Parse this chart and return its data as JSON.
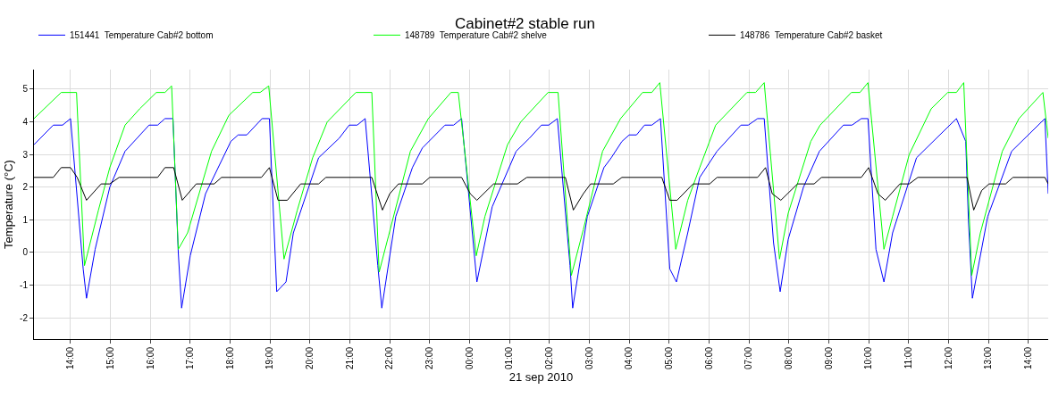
{
  "chart_data": {
    "type": "line",
    "title": "Cabinet#2 stable run",
    "xlabel": "21 sep 2010",
    "ylabel": "Temperature (°C)",
    "grid": true,
    "legend": "top left",
    "marker": "none",
    "line_style": "solid",
    "xlim": [
      "2010-09-20T13:05",
      "2010-09-21T14:30"
    ],
    "ylim": [
      -2.65,
      5.6
    ],
    "yticks": [
      -2,
      -1,
      0,
      1,
      2,
      3,
      4,
      5
    ],
    "xticks": [
      {
        "value": "2010-09-20T14:00",
        "label": "14:00"
      },
      {
        "value": "2010-09-20T15:00",
        "label": "15:00"
      },
      {
        "value": "2010-09-20T16:00",
        "label": "16:00"
      },
      {
        "value": "2010-09-20T17:00",
        "label": "17:00"
      },
      {
        "value": "2010-09-20T18:00",
        "label": "18:00"
      },
      {
        "value": "2010-09-20T19:00",
        "label": "19:00"
      },
      {
        "value": "2010-09-20T20:00",
        "label": "20:00"
      },
      {
        "value": "2010-09-20T21:00",
        "label": "21:00"
      },
      {
        "value": "2010-09-20T22:00",
        "label": "22:00"
      },
      {
        "value": "2010-09-20T23:00",
        "label": "23:00"
      },
      {
        "value": "2010-09-21T00:00",
        "label": "00:00"
      },
      {
        "value": "2010-09-21T01:00",
        "label": "01:00"
      },
      {
        "value": "2010-09-21T02:00",
        "label": "02:00"
      },
      {
        "value": "2010-09-21T03:00",
        "label": "03:00"
      },
      {
        "value": "2010-09-21T04:00",
        "label": "04:00"
      },
      {
        "value": "2010-09-21T05:00",
        "label": "05:00"
      },
      {
        "value": "2010-09-21T06:00",
        "label": "06:00"
      },
      {
        "value": "2010-09-21T07:00",
        "label": "07:00"
      },
      {
        "value": "2010-09-21T08:00",
        "label": "08:00"
      },
      {
        "value": "2010-09-21T09:00",
        "label": "09:00"
      },
      {
        "value": "2010-09-21T10:00",
        "label": "10:00"
      },
      {
        "value": "2010-09-21T11:00",
        "label": "11:00"
      },
      {
        "value": "2010-09-21T12:00",
        "label": "12:00"
      },
      {
        "value": "2010-09-21T13:00",
        "label": "13:00"
      },
      {
        "value": "2010-09-21T14:00",
        "label": "14:00"
      }
    ],
    "series": [
      {
        "name": "151441  Temperature Cab#2 bottom",
        "color": "#0000ff",
        "x": [
          "2010-09-20T13:05",
          "2010-09-20T13:34",
          "2010-09-20T13:48",
          "2010-09-20T14:00",
          "2010-09-20T14:19",
          "2010-09-20T14:24",
          "2010-09-20T14:37",
          "2010-09-20T14:59",
          "2010-09-20T15:22",
          "2010-09-20T15:58",
          "2010-09-20T16:11",
          "2010-09-20T16:22",
          "2010-09-20T16:34",
          "2010-09-20T16:42",
          "2010-09-20T16:47",
          "2010-09-20T17:00",
          "2010-09-20T17:23",
          "2010-09-20T18:01",
          "2010-09-20T18:12",
          "2010-09-20T18:25",
          "2010-09-20T18:48",
          "2010-09-20T18:59",
          "2010-09-20T19:10",
          "2010-09-20T19:24",
          "2010-09-20T19:35",
          "2010-09-20T20:13",
          "2010-09-20T20:44",
          "2010-09-20T20:59",
          "2010-09-20T21:11",
          "2010-09-20T21:23",
          "2010-09-20T21:42",
          "2010-09-20T21:48",
          "2010-09-20T22:09",
          "2010-09-20T22:34",
          "2010-09-20T22:49",
          "2010-09-20T23:23",
          "2010-09-20T23:36",
          "2010-09-20T23:48",
          "2010-09-21T00:11",
          "2010-09-21T00:34",
          "2010-09-21T01:10",
          "2010-09-21T01:30",
          "2010-09-21T01:48",
          "2010-09-21T01:59",
          "2010-09-21T02:12",
          "2010-09-21T02:31",
          "2010-09-21T02:35",
          "2010-09-21T02:57",
          "2010-09-21T03:22",
          "2010-09-21T03:33",
          "2010-09-21T03:49",
          "2010-09-21T04:00",
          "2010-09-21T04:11",
          "2010-09-21T04:23",
          "2010-09-21T04:34",
          "2010-09-21T04:47",
          "2010-09-21T05:01",
          "2010-09-21T05:11",
          "2010-09-21T05:28",
          "2010-09-21T05:46",
          "2010-09-21T06:12",
          "2010-09-21T06:48",
          "2010-09-21T06:59",
          "2010-09-21T07:13",
          "2010-09-21T07:23",
          "2010-09-21T07:37",
          "2010-09-21T07:47",
          "2010-09-21T07:59",
          "2010-09-21T08:22",
          "2010-09-21T08:46",
          "2010-09-21T09:22",
          "2010-09-21T09:35",
          "2010-09-21T09:49",
          "2010-09-21T09:59",
          "2010-09-21T10:11",
          "2010-09-21T10:23",
          "2010-09-21T10:36",
          "2010-09-21T11:12",
          "2010-09-21T12:12",
          "2010-09-21T12:26",
          "2010-09-21T12:30",
          "2010-09-21T12:36",
          "2010-09-21T12:59",
          "2010-09-21T13:35",
          "2010-09-21T14:25",
          "2010-09-21T14:30"
        ],
        "values": [
          3.3,
          3.9,
          3.9,
          4.1,
          -0.5,
          -1.4,
          0.1,
          2.0,
          3.1,
          3.9,
          3.9,
          4.1,
          4.1,
          0.0,
          -1.7,
          -0.1,
          1.8,
          3.4,
          3.6,
          3.6,
          4.1,
          4.1,
          -1.2,
          -0.9,
          0.6,
          2.9,
          3.5,
          3.9,
          3.9,
          4.1,
          -0.4,
          -1.7,
          1.1,
          2.6,
          3.2,
          3.9,
          3.9,
          4.1,
          -0.9,
          1.4,
          3.1,
          3.5,
          3.9,
          3.9,
          4.1,
          -0.4,
          -1.7,
          1.1,
          2.6,
          2.9,
          3.4,
          3.6,
          3.6,
          3.9,
          3.9,
          4.1,
          -0.5,
          -0.9,
          0.6,
          2.3,
          3.1,
          3.9,
          3.9,
          4.1,
          4.1,
          0.3,
          -1.2,
          0.4,
          2.0,
          3.1,
          3.9,
          3.9,
          4.1,
          4.1,
          0.1,
          -0.9,
          0.6,
          2.9,
          4.1,
          3.4,
          1.0,
          -1.4,
          1.1,
          3.1,
          4.1,
          1.8
        ]
      },
      {
        "name": "148789  Temperature Cab#2 shelve",
        "color": "#00ff00",
        "x": [
          "2010-09-20T13:05",
          "2010-09-20T13:46",
          "2010-09-20T14:09",
          "2010-09-20T14:21",
          "2010-09-20T14:42",
          "2010-09-20T14:59",
          "2010-09-20T15:22",
          "2010-09-20T15:44",
          "2010-09-20T16:09",
          "2010-09-20T16:22",
          "2010-09-20T16:32",
          "2010-09-20T16:42",
          "2010-09-20T16:56",
          "2010-09-20T17:32",
          "2010-09-20T17:58",
          "2010-09-20T18:34",
          "2010-09-20T18:45",
          "2010-09-20T18:58",
          "2010-09-20T19:21",
          "2010-09-20T19:41",
          "2010-09-20T20:04",
          "2010-09-20T20:26",
          "2010-09-20T21:09",
          "2010-09-20T21:33",
          "2010-09-20T21:44",
          "2010-09-20T21:58",
          "2010-09-20T22:31",
          "2010-09-20T22:58",
          "2010-09-20T23:32",
          "2010-09-20T23:43",
          "2010-09-21T00:10",
          "2010-09-21T00:23",
          "2010-09-21T00:57",
          "2010-09-21T01:17",
          "2010-09-21T01:58",
          "2010-09-21T02:13",
          "2010-09-21T02:33",
          "2010-09-21T02:51",
          "2010-09-21T03:20",
          "2010-09-21T03:47",
          "2010-09-21T04:20",
          "2010-09-21T04:34",
          "2010-09-21T04:46",
          "2010-09-21T05:10",
          "2010-09-21T05:28",
          "2010-09-21T05:46",
          "2010-09-21T06:10",
          "2010-09-21T06:57",
          "2010-09-21T07:10",
          "2010-09-21T07:23",
          "2010-09-21T07:46",
          "2010-09-21T07:59",
          "2010-09-21T08:33",
          "2010-09-21T08:47",
          "2010-09-21T09:34",
          "2010-09-21T09:47",
          "2010-09-21T09:59",
          "2010-09-21T10:23",
          "2010-09-21T10:36",
          "2010-09-21T11:01",
          "2010-09-21T11:34",
          "2010-09-21T11:59",
          "2010-09-21T12:12",
          "2010-09-21T12:23",
          "2010-09-21T12:35",
          "2010-09-21T12:48",
          "2010-09-21T13:21",
          "2010-09-21T13:46",
          "2010-09-21T14:22",
          "2010-09-21T14:30"
        ],
        "values": [
          4.1,
          4.9,
          4.9,
          -0.4,
          1.3,
          2.6,
          3.9,
          4.4,
          4.9,
          4.9,
          5.1,
          0.1,
          0.6,
          3.1,
          4.2,
          4.9,
          4.9,
          5.1,
          -0.2,
          1.3,
          2.9,
          4.0,
          4.9,
          4.9,
          -0.6,
          0.5,
          3.1,
          4.1,
          4.9,
          4.9,
          -0.1,
          1.1,
          3.3,
          4.0,
          4.9,
          4.9,
          -0.7,
          0.7,
          3.1,
          4.1,
          4.9,
          4.9,
          5.2,
          0.1,
          1.6,
          2.6,
          3.9,
          4.9,
          4.9,
          5.2,
          -0.2,
          1.2,
          3.4,
          3.9,
          4.9,
          4.9,
          5.2,
          0.1,
          1.1,
          3.0,
          4.4,
          4.9,
          4.9,
          5.2,
          -0.7,
          0.6,
          3.1,
          4.1,
          4.9,
          3.5
        ]
      },
      {
        "name": "148786  Temperature Cab#2 basket",
        "color": "#000000",
        "x": [
          "2010-09-20T13:05",
          "2010-09-20T13:34",
          "2010-09-20T13:46",
          "2010-09-20T14:00",
          "2010-09-20T14:10",
          "2010-09-20T14:24",
          "2010-09-20T14:46",
          "2010-09-20T14:59",
          "2010-09-20T15:13",
          "2010-09-20T16:11",
          "2010-09-20T16:22",
          "2010-09-20T16:35",
          "2010-09-20T16:48",
          "2010-09-20T17:09",
          "2010-09-20T17:36",
          "2010-09-20T17:47",
          "2010-09-20T18:47",
          "2010-09-20T18:59",
          "2010-09-20T19:12",
          "2010-09-20T19:26",
          "2010-09-20T19:46",
          "2010-09-20T20:13",
          "2010-09-20T20:24",
          "2010-09-20T21:33",
          "2010-09-20T21:49",
          "2010-09-20T22:00",
          "2010-09-20T22:13",
          "2010-09-20T22:49",
          "2010-09-20T23:00",
          "2010-09-20T23:48",
          "2010-09-21T00:01",
          "2010-09-21T00:11",
          "2010-09-21T00:36",
          "2010-09-21T01:12",
          "2010-09-21T01:26",
          "2010-09-21T02:24",
          "2010-09-21T02:36",
          "2010-09-21T02:51",
          "2010-09-21T03:02",
          "2010-09-21T03:36",
          "2010-09-21T03:49",
          "2010-09-21T04:49",
          "2010-09-21T05:01",
          "2010-09-21T05:12",
          "2010-09-21T05:36",
          "2010-09-21T06:01",
          "2010-09-21T06:12",
          "2010-09-21T07:13",
          "2010-09-21T07:25",
          "2010-09-21T07:35",
          "2010-09-21T07:48",
          "2010-09-21T08:13",
          "2010-09-21T08:38",
          "2010-09-21T08:49",
          "2010-09-21T09:49",
          "2010-09-21T10:00",
          "2010-09-21T10:14",
          "2010-09-21T10:25",
          "2010-09-21T10:47",
          "2010-09-21T11:01",
          "2010-09-21T11:14",
          "2010-09-21T12:28",
          "2010-09-21T12:38",
          "2010-09-21T12:50",
          "2010-09-21T13:01",
          "2010-09-21T13:26",
          "2010-09-21T13:37",
          "2010-09-21T14:25",
          "2010-09-21T14:30"
        ],
        "values": [
          2.3,
          2.3,
          2.6,
          2.6,
          2.3,
          1.6,
          2.1,
          2.1,
          2.3,
          2.3,
          2.6,
          2.6,
          1.6,
          2.1,
          2.1,
          2.3,
          2.3,
          2.6,
          1.6,
          1.6,
          2.1,
          2.1,
          2.3,
          2.3,
          1.3,
          1.8,
          2.1,
          2.1,
          2.3,
          2.3,
          1.8,
          1.6,
          2.1,
          2.1,
          2.3,
          2.3,
          1.3,
          1.8,
          2.1,
          2.1,
          2.3,
          2.3,
          1.6,
          1.6,
          2.1,
          2.1,
          2.3,
          2.3,
          2.6,
          1.8,
          1.6,
          2.1,
          2.1,
          2.3,
          2.3,
          2.6,
          1.8,
          1.6,
          2.1,
          2.1,
          2.3,
          2.3,
          1.3,
          1.9,
          2.1,
          2.1,
          2.3,
          2.3,
          2.1
        ]
      }
    ]
  }
}
